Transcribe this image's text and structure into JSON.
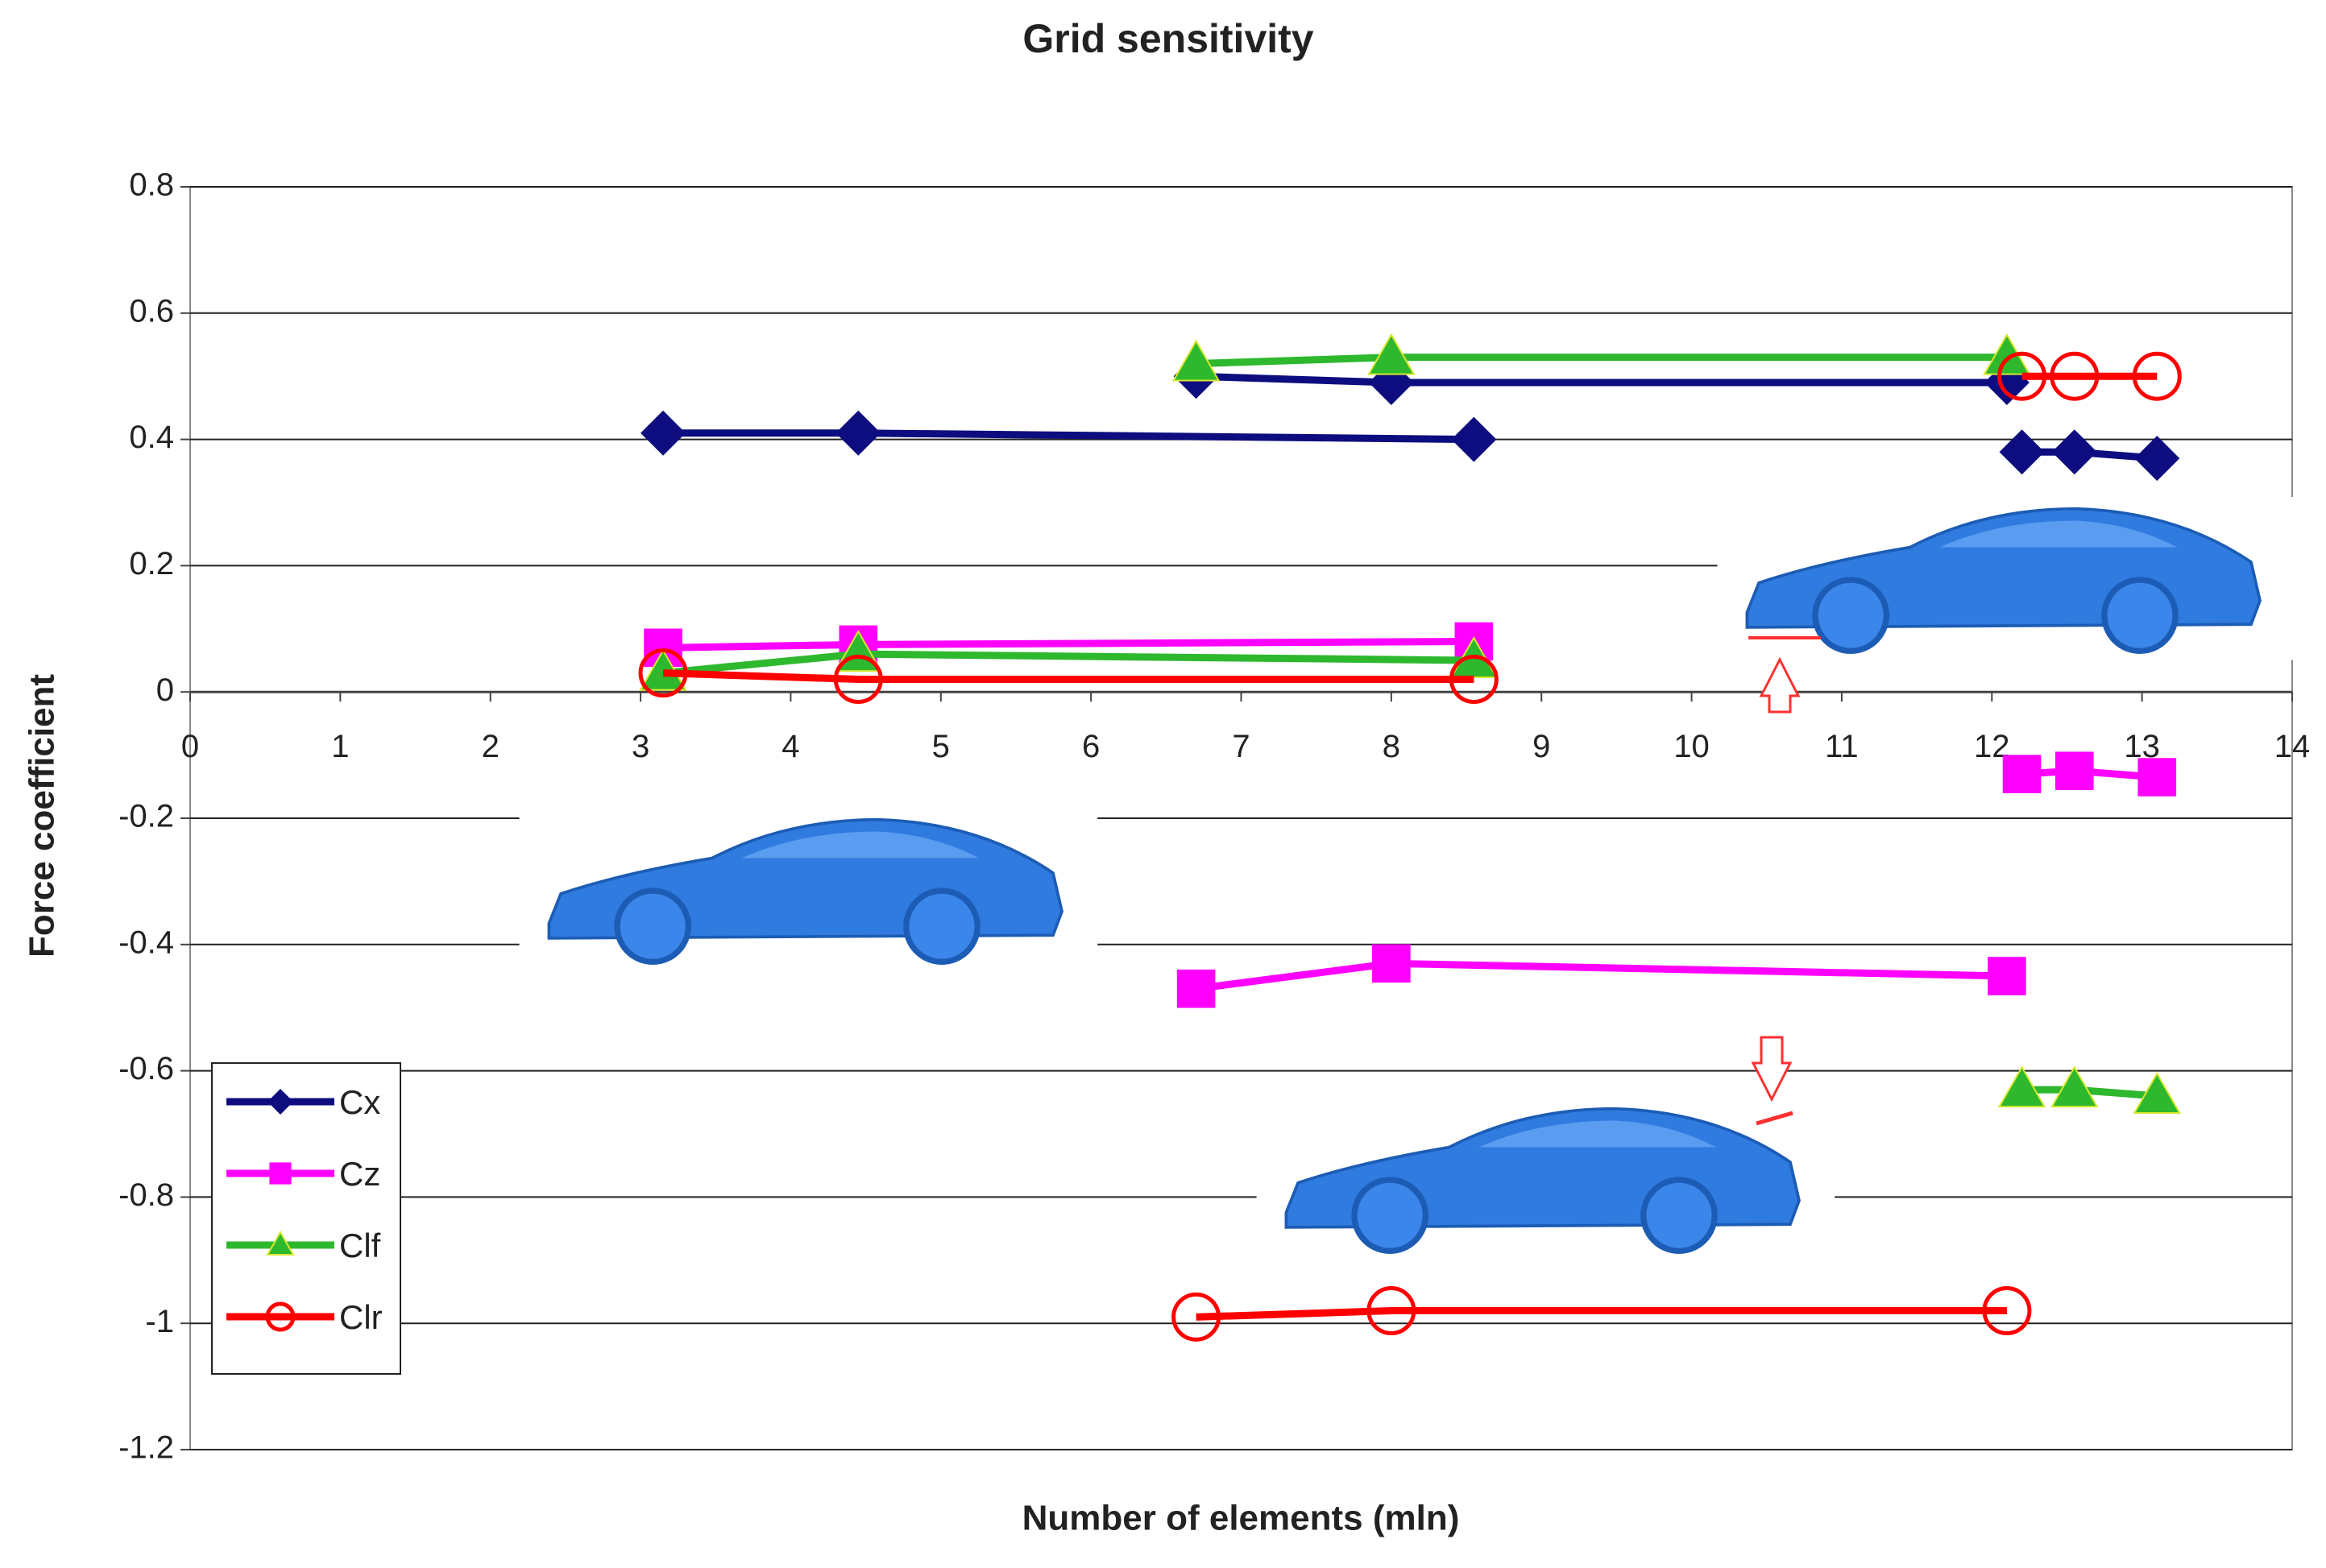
{
  "chart_data": {
    "type": "line",
    "title": "Grid sensitivity",
    "x_label": "Number of elements (mln)",
    "y_label": "Force coefficient",
    "xlim": [
      0,
      14
    ],
    "xticks": [
      0,
      1,
      2,
      3,
      4,
      5,
      6,
      7,
      8,
      9,
      10,
      11,
      12,
      13,
      14
    ],
    "ylim": [
      -1.2,
      0.8
    ],
    "yticks": [
      -1.2,
      -1,
      -0.8,
      -0.6,
      -0.4,
      -0.2,
      0,
      0.2,
      0.4,
      0.6,
      0.8
    ],
    "grid": true,
    "legend": "lower-left",
    "series": [
      {
        "name": "Cx",
        "color": "#0d0d80",
        "marker": "diamond",
        "x": [
          3.15,
          4.45,
          8.55,
          null,
          6.7,
          8.0,
          12.1,
          null,
          12.2,
          12.55,
          13.1
        ],
        "values": [
          0.41,
          0.41,
          0.4,
          null,
          0.5,
          0.49,
          0.49,
          null,
          0.38,
          0.38,
          0.37
        ]
      },
      {
        "name": "Cz",
        "color": "#ff00ff",
        "marker": "square",
        "x": [
          3.15,
          4.45,
          8.55,
          null,
          6.7,
          8.0,
          12.1,
          null,
          12.2,
          12.55,
          13.1
        ],
        "values": [
          0.07,
          0.075,
          0.08,
          null,
          -0.47,
          -0.43,
          -0.45,
          null,
          -0.13,
          -0.125,
          -0.135
        ]
      },
      {
        "name": "Clf",
        "color": "#2db82d",
        "marker": "triangle",
        "x": [
          3.15,
          4.45,
          8.55,
          null,
          6.7,
          8.0,
          12.1,
          null,
          12.2,
          12.55,
          13.1
        ],
        "values": [
          0.03,
          0.06,
          0.05,
          null,
          0.52,
          0.53,
          0.53,
          null,
          -0.63,
          -0.63,
          -0.64
        ]
      },
      {
        "name": "Clr",
        "color": "#ff0000",
        "marker": "circle",
        "x": [
          3.15,
          4.45,
          8.55,
          null,
          6.7,
          8.0,
          12.1,
          null,
          12.2,
          12.55,
          13.1
        ],
        "values": [
          0.03,
          0.02,
          0.02,
          null,
          -0.99,
          -0.98,
          -0.98,
          null,
          0.5,
          0.5,
          0.5
        ]
      }
    ]
  }
}
